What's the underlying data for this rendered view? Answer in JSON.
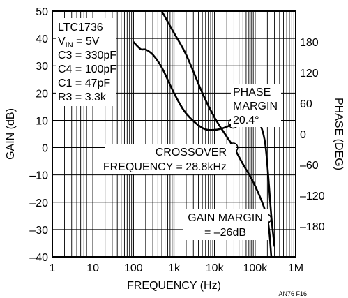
{
  "chart_data": {
    "type": "line",
    "title": "",
    "xlabel": "FREQUENCY (Hz)",
    "ylabel_left": "GAIN (dB)",
    "ylabel_right": "PHASE (DEG)",
    "x_scale": "log",
    "xlim": [
      1,
      1000000
    ],
    "x_ticks": [
      1,
      10,
      100,
      1000,
      10000,
      100000,
      1000000
    ],
    "x_tick_labels": [
      "1",
      "10",
      "100",
      "1k",
      "10k",
      "100k",
      "1M"
    ],
    "ylim_left": [
      -40,
      50
    ],
    "y_left_ticks": [
      -40,
      -30,
      -20,
      -10,
      0,
      10,
      20,
      30,
      40,
      50
    ],
    "y_left_tick_labels": [
      "–40",
      "–30",
      "–20",
      "–10",
      "0",
      "10",
      "20",
      "30",
      "40",
      "50"
    ],
    "ylim_right": [
      -240,
      240
    ],
    "y_right_ticks": [
      -180,
      -120,
      -60,
      0,
      60,
      120,
      180
    ],
    "y_right_tick_labels": [
      "–180",
      "–120",
      "–60",
      "0",
      "60",
      "120",
      "180"
    ],
    "grid": true,
    "series": [
      {
        "axis": "left",
        "x": [
          500,
          1000,
          2000,
          5000,
          10000,
          20000,
          30000,
          50000,
          100000,
          200000,
          250000
        ],
        "y": [
          50,
          42,
          34,
          20,
          11,
          4,
          0,
          -6,
          -14,
          -26,
          -40
        ]
      },
      {
        "axis": "right",
        "x": [
          100,
          150,
          200,
          300,
          500,
          1000,
          2000,
          5000,
          10000,
          20000,
          30000,
          50000,
          80000,
          100000,
          130000,
          170000,
          200000,
          250000,
          300000
        ],
        "y": [
          180,
          166,
          165,
          155,
          130,
          80,
          40,
          12,
          8,
          14,
          22,
          24,
          26,
          26,
          20,
          -10,
          -60,
          -160,
          -220
        ]
      }
    ],
    "annotations": [
      {
        "lines": [
          "LTC1736",
          "V_IN = 5V",
          "C3 = 330pF",
          "C4 = 100pF",
          "C1 = 47pF",
          "R3 = 3.3k"
        ]
      },
      {
        "lines": [
          "PHASE",
          "MARGIN",
          "20.4°"
        ],
        "x": 28800,
        "axis": "right",
        "y": 20.4
      },
      {
        "lines": [
          "CROSSOVER",
          "FREQUENCY = 28.8kHz"
        ],
        "x": 28800,
        "axis": "left",
        "y": 0
      },
      {
        "lines": [
          "GAIN MARGIN",
          "= –26dB"
        ],
        "x": 190000,
        "axis": "left",
        "y": -26
      }
    ],
    "figure_label": "AN76 F16"
  }
}
